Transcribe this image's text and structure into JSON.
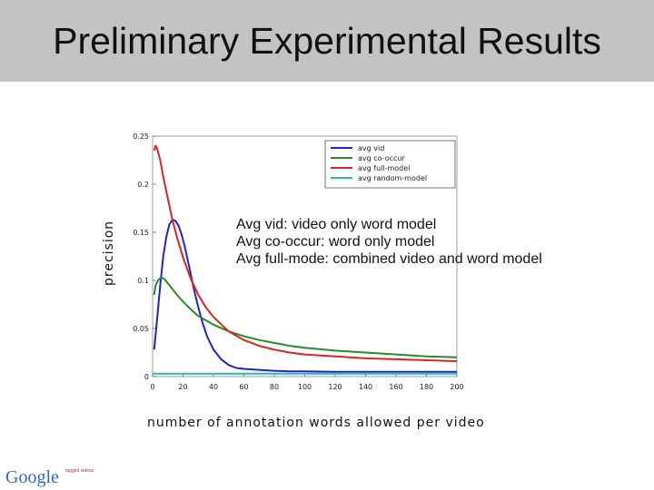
{
  "slide": {
    "title": "Preliminary Experimental Results",
    "notes": [
      "Avg vid: video only word model",
      "Avg co-occur: word only model",
      "Avg full-mode: combined video and word model"
    ],
    "logo_text": "Google",
    "logo_fine_print": "tagged videos"
  },
  "chart_data": {
    "type": "line",
    "xlabel": "number of annotation words allowed per video",
    "ylabel": "precision",
    "xlim": [
      0,
      200
    ],
    "ylim": [
      0,
      0.25
    ],
    "xticks": [
      0,
      20,
      40,
      60,
      80,
      100,
      120,
      140,
      160,
      180,
      200
    ],
    "yticks": [
      0,
      0.05,
      0.1,
      0.15,
      0.2,
      0.25
    ],
    "ytick_labels": [
      "0",
      "0.05",
      "0.1",
      "0.15",
      "0.2",
      "0.25"
    ],
    "grid": false,
    "legend_position": "top-right",
    "series": [
      {
        "name": "avg vid",
        "color": "#2222cc",
        "x": [
          1,
          3,
          5,
          7,
          9,
          11,
          13,
          15,
          17,
          19,
          21,
          23,
          25,
          27,
          30,
          33,
          36,
          40,
          45,
          50,
          55,
          60,
          70,
          80,
          90,
          100,
          120,
          140,
          160,
          180,
          200
        ],
        "y": [
          0.028,
          0.06,
          0.095,
          0.125,
          0.145,
          0.158,
          0.163,
          0.162,
          0.157,
          0.148,
          0.136,
          0.122,
          0.107,
          0.092,
          0.072,
          0.055,
          0.041,
          0.028,
          0.018,
          0.012,
          0.009,
          0.008,
          0.007,
          0.006,
          0.0055,
          0.0055,
          0.005,
          0.005,
          0.005,
          0.005,
          0.005
        ]
      },
      {
        "name": "avg co-occur",
        "color": "#2a8a2a",
        "x": [
          1,
          2,
          4,
          6,
          8,
          10,
          13,
          16,
          20,
          25,
          30,
          40,
          50,
          60,
          70,
          80,
          90,
          100,
          120,
          140,
          160,
          180,
          200
        ],
        "y": [
          0.085,
          0.095,
          0.101,
          0.103,
          0.101,
          0.097,
          0.091,
          0.085,
          0.078,
          0.07,
          0.063,
          0.054,
          0.047,
          0.042,
          0.038,
          0.035,
          0.032,
          0.03,
          0.027,
          0.025,
          0.023,
          0.021,
          0.02
        ]
      },
      {
        "name": "avg full-model",
        "color": "#dd2222",
        "x": [
          1,
          2,
          3,
          5,
          7,
          10,
          13,
          16,
          20,
          25,
          30,
          35,
          40,
          50,
          60,
          70,
          80,
          90,
          100,
          120,
          140,
          160,
          180,
          200
        ],
        "y": [
          0.235,
          0.24,
          0.237,
          0.225,
          0.208,
          0.185,
          0.163,
          0.145,
          0.124,
          0.102,
          0.085,
          0.072,
          0.062,
          0.047,
          0.038,
          0.032,
          0.028,
          0.025,
          0.023,
          0.021,
          0.019,
          0.018,
          0.017,
          0.016
        ]
      },
      {
        "name": "avg random-model",
        "color": "#22bbbb",
        "x": [
          0,
          200
        ],
        "y": [
          0.003,
          0.003
        ]
      }
    ]
  }
}
